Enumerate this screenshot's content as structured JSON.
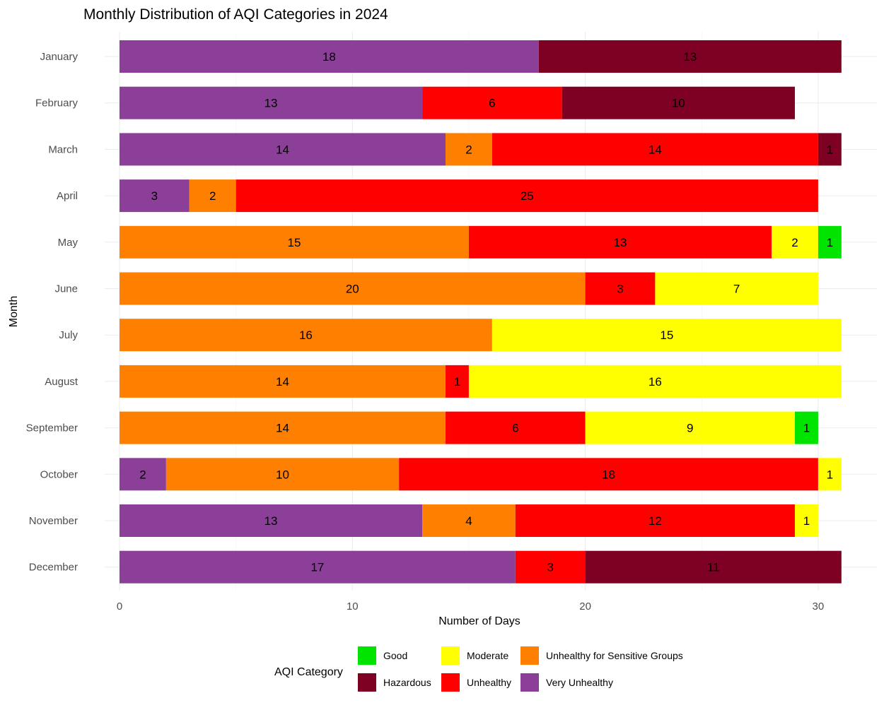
{
  "chart_data": {
    "type": "bar",
    "orientation": "horizontal",
    "stacked": true,
    "title": "Monthly Distribution of AQI Categories in 2024",
    "xlabel": "Number of Days",
    "ylabel": "Month",
    "xlim": [
      0,
      31.8
    ],
    "xticks": [
      0,
      10,
      20,
      30
    ],
    "grid": true,
    "legend_position": "bottom",
    "categories": [
      "January",
      "February",
      "March",
      "April",
      "May",
      "June",
      "July",
      "August",
      "September",
      "October",
      "November",
      "December"
    ],
    "stack_order": [
      "Very Unhealthy",
      "Unhealthy for Sensitive Groups",
      "Unhealthy",
      "Hazardous",
      "Moderate",
      "Good"
    ],
    "series": [
      {
        "name": "Very Unhealthy",
        "color": "#8b3f98",
        "values": [
          18,
          13,
          14,
          3,
          0,
          0,
          0,
          0,
          0,
          2,
          13,
          17
        ]
      },
      {
        "name": "Unhealthy for Sensitive Groups",
        "color": "#ff7f00",
        "values": [
          0,
          0,
          2,
          2,
          15,
          20,
          16,
          14,
          14,
          10,
          4,
          0
        ]
      },
      {
        "name": "Unhealthy",
        "color": "#ff0000",
        "values": [
          0,
          6,
          14,
          25,
          13,
          3,
          0,
          1,
          6,
          18,
          12,
          3
        ]
      },
      {
        "name": "Hazardous",
        "color": "#7e0023",
        "values": [
          13,
          10,
          1,
          0,
          0,
          0,
          0,
          0,
          0,
          0,
          0,
          11
        ]
      },
      {
        "name": "Moderate",
        "color": "#ffff00",
        "values": [
          0,
          0,
          0,
          0,
          2,
          7,
          15,
          16,
          9,
          1,
          1,
          0
        ]
      },
      {
        "name": "Good",
        "color": "#00e400",
        "values": [
          0,
          0,
          0,
          0,
          1,
          0,
          0,
          0,
          1,
          0,
          0,
          0
        ]
      }
    ],
    "legend": {
      "title": "AQI Category",
      "entries": [
        "Good",
        "Moderate",
        "Unhealthy for Sensitive Groups",
        "Hazardous",
        "Unhealthy",
        "Very Unhealthy"
      ]
    }
  }
}
